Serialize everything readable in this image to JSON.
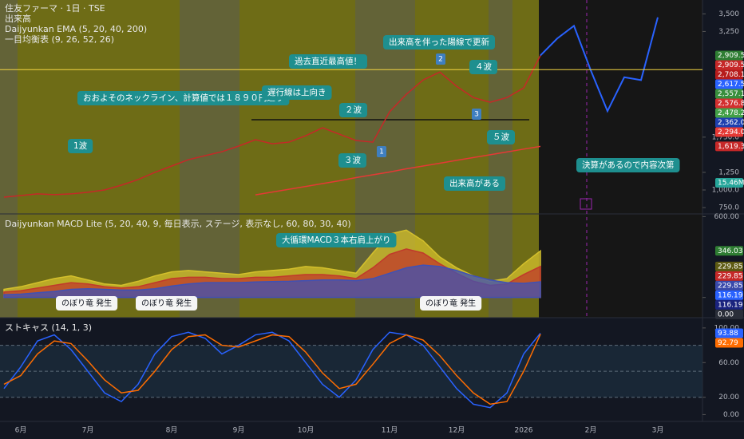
{
  "chart_data": [
    {
      "type": "line",
      "title": "住友ファーマ · 1日 · TSE",
      "subtitles": [
        "出来高",
        "Daijyunkan EMA (5, 20, 40, 200)",
        "一目均衡表 (9, 26, 52, 26)"
      ],
      "categories": [
        null,
        "6月",
        null,
        null,
        null,
        "7月",
        null,
        null,
        null,
        null,
        "8月",
        null,
        null,
        null,
        "9月",
        null,
        null,
        null,
        "10月",
        null,
        null,
        null,
        null,
        "11月",
        null,
        null,
        null,
        "12月",
        null,
        null,
        null,
        "2026",
        null,
        null,
        null,
        "2月",
        null,
        null,
        null,
        "3月"
      ],
      "series": [
        {
          "color": "#c62828",
          "values": [
            898,
            921,
            944,
            933,
            944,
            967,
            1000,
            1068,
            1148,
            1250,
            1340,
            1430,
            1487,
            1543,
            1623,
            1713,
            1656,
            1679,
            1770,
            1883,
            1792,
            1702,
            1679,
            2109,
            2358,
            2561,
            2674,
            2471,
            2312,
            2245,
            2312,
            2448,
            2909.5,
            null,
            null,
            null,
            null,
            null,
            null,
            null
          ]
        },
        {
          "color": "#2962ff",
          "values": [
            null,
            null,
            null,
            null,
            null,
            null,
            null,
            null,
            null,
            null,
            null,
            null,
            null,
            null,
            null,
            null,
            null,
            null,
            null,
            null,
            null,
            null,
            null,
            null,
            null,
            null,
            null,
            null,
            null,
            null,
            null,
            null,
            2909.5,
            3150,
            3330,
            2700,
            2120,
            2600,
            2560,
            3450
          ]
        },
        {
          "color": "#e53935",
          "values": [
            null,
            null,
            null,
            null,
            null,
            null,
            null,
            null,
            null,
            null,
            null,
            null,
            null,
            null,
            null,
            930,
            970,
            1010,
            1050,
            1090,
            1130,
            1175,
            1215,
            1255,
            1300,
            1340,
            1380,
            1420,
            1460,
            1500,
            1540,
            1580,
            1619.3,
            null,
            null,
            null,
            null,
            null,
            null,
            null
          ]
        }
      ],
      "ylim": [
        660,
        3640
      ],
      "yticks": [
        {
          "value": 3500,
          "label": "3,500"
        },
        {
          "value": 3250,
          "label": "3,250"
        },
        {
          "value": 1750,
          "label": "1,750.0"
        },
        {
          "value": 1250,
          "label": "1,250"
        },
        {
          "value": 1000,
          "label": "1,000.0"
        },
        {
          "value": 750,
          "label": "750.0"
        }
      ],
      "price_labels": [
        {
          "value": 2909.5,
          "label": "2,909.5",
          "color": "#2e7d32"
        },
        {
          "value": 2909.5,
          "label": "2,909.5",
          "color": "#c62828"
        },
        {
          "value": 2708.1,
          "label": "2,708.1",
          "color": "#b71c1c"
        },
        {
          "value": 2617.5,
          "label": "2,617.5",
          "color": "#2962ff"
        },
        {
          "value": 2557.1,
          "label": "2,557.1",
          "color": "#388e3c"
        },
        {
          "value": 2576.8,
          "label": "2,576.8",
          "color": "#d32f2f"
        },
        {
          "value": 2478.2,
          "label": "2,478.2",
          "color": "#43a047"
        },
        {
          "value": 2362.0,
          "label": "2,362.0",
          "color": "#1e40af"
        },
        {
          "value": 2294.0,
          "label": "2,294.0",
          "color": "#e53935"
        },
        {
          "value": 1619.3,
          "label": "1,619.3",
          "color": "#c62828"
        }
      ],
      "volume_label": "15.46M",
      "annotations": [
        "1波",
        "おおよそのネックライン、計算値では１８９０円辺り",
        "遅行線は上向き",
        "過去直近最高値！",
        "出来高を伴った陽線で更新",
        "２波",
        "３波",
        "４波",
        "５波",
        "出来高がある",
        "決算があるので内容次第"
      ],
      "wave_labels": [
        "1",
        "2",
        "3"
      ]
    },
    {
      "type": "area",
      "title": "Daijyunkan MACD Lite (5, 20, 40, 9, 毎日表示, ステージ, 表示なし, 60, 80, 30, 40)",
      "series": [
        {
          "color": "#d4c02c",
          "values": [
            60,
            80,
            110,
            140,
            160,
            130,
            100,
            90,
            120,
            160,
            190,
            200,
            190,
            180,
            170,
            190,
            200,
            210,
            230,
            220,
            200,
            180,
            330,
            470,
            500,
            420,
            300,
            220,
            160,
            120,
            140,
            250,
            346.03,
            null,
            null,
            null,
            null,
            null,
            null,
            null
          ]
        },
        {
          "color": "#c0392b",
          "values": [
            40,
            50,
            70,
            90,
            110,
            100,
            80,
            70,
            80,
            110,
            140,
            150,
            150,
            140,
            140,
            150,
            150,
            160,
            170,
            170,
            160,
            140,
            220,
            320,
            360,
            330,
            250,
            180,
            120,
            90,
            100,
            170,
            229.85,
            null,
            null,
            null,
            null,
            null,
            null,
            null
          ]
        },
        {
          "color": "#3f51b5",
          "values": [
            20,
            25,
            35,
            45,
            60,
            65,
            60,
            55,
            55,
            65,
            85,
            100,
            110,
            110,
            110,
            115,
            118,
            120,
            125,
            130,
            130,
            125,
            140,
            180,
            220,
            240,
            230,
            200,
            160,
            130,
            110,
            105,
            116.19,
            null,
            null,
            null,
            null,
            null,
            null,
            null
          ]
        }
      ],
      "ylim": [
        -150,
        620
      ],
      "yticks": [
        {
          "value": 600,
          "label": "600.00"
        },
        {
          "value": 0,
          "label": "0.00"
        }
      ],
      "price_labels": [
        {
          "value": 346.03,
          "label": "346.03",
          "color": "#2e7d32"
        },
        {
          "value": 229.85,
          "label": "229.85",
          "color": "#5d5a12"
        },
        {
          "value": 229.85,
          "label": "229.85",
          "color": "#c62828"
        },
        {
          "value": 229.85,
          "label": "229.85",
          "color": "#3949ab"
        },
        {
          "value": 116.19,
          "label": "116.19",
          "color": "#2962ff"
        },
        {
          "value": 116.19,
          "label": "116.19",
          "color": "#1a237e"
        },
        {
          "value": 0,
          "label": "0.00",
          "color": "#2a2e39"
        }
      ],
      "annotations": [
        "大循環MACD３本右肩上がり",
        "のぼり竜 発生",
        "のぼり竜 発生",
        "のぼり竜 発生"
      ]
    },
    {
      "type": "line",
      "title": "ストキャス (14, 1, 3)",
      "series": [
        {
          "color": "#2962ff",
          "values": [
            30,
            55,
            85,
            92,
            75,
            50,
            25,
            15,
            35,
            70,
            90,
            95,
            88,
            70,
            80,
            92,
            95,
            85,
            60,
            35,
            20,
            40,
            75,
            95,
            92,
            80,
            55,
            30,
            12,
            8,
            25,
            70,
            93.88,
            null,
            null,
            null,
            null,
            null,
            null,
            null
          ]
        },
        {
          "color": "#ff6d00",
          "values": [
            35,
            45,
            70,
            85,
            82,
            62,
            40,
            25,
            28,
            50,
            75,
            90,
            92,
            80,
            78,
            85,
            92,
            90,
            72,
            48,
            30,
            35,
            58,
            82,
            92,
            86,
            68,
            45,
            25,
            12,
            15,
            50,
            92.79,
            null,
            null,
            null,
            null,
            null,
            null,
            null
          ]
        }
      ],
      "ylim": [
        -7,
        110
      ],
      "yticks": [
        {
          "value": 100,
          "label": "100.00"
        },
        {
          "value": 60,
          "label": "60.00"
        },
        {
          "value": 20,
          "label": "20.00"
        },
        {
          "value": 0,
          "label": "0.00"
        }
      ],
      "levels": [
        20,
        50,
        80
      ],
      "price_labels": [
        {
          "value": 93.88,
          "label": "93.88",
          "color": "#2962ff"
        },
        {
          "value": 92.79,
          "label": "92.79",
          "color": "#ff6d00"
        }
      ]
    }
  ]
}
